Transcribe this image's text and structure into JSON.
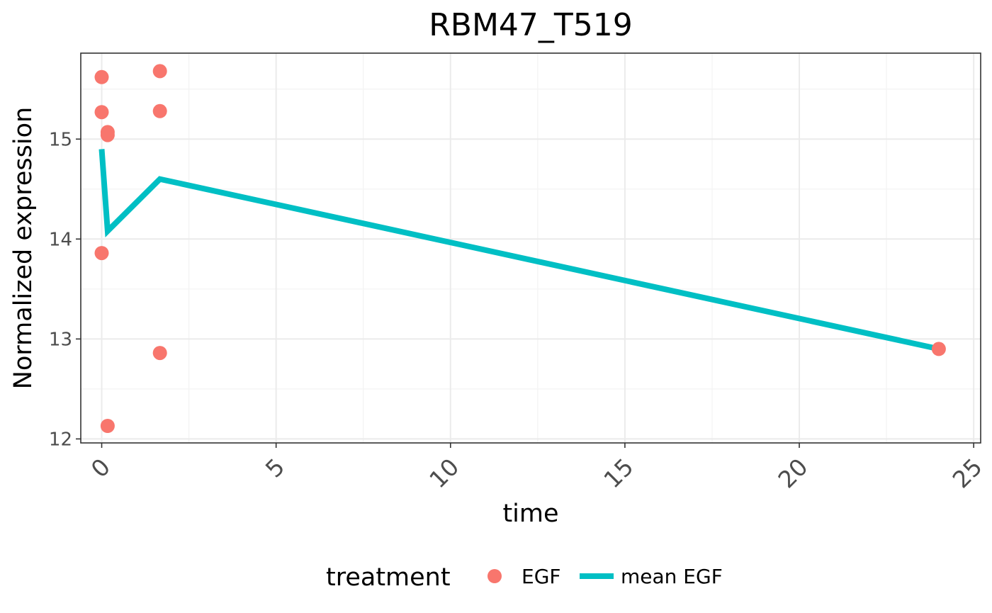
{
  "chart_data": {
    "type": "line",
    "title": "RBM47_T519",
    "xlabel": "time",
    "ylabel": "Normalized expression",
    "xlim": [
      -0.6,
      25.2
    ],
    "ylim": [
      11.96,
      15.86
    ],
    "x_ticks": [
      0,
      5,
      10,
      15,
      20,
      25
    ],
    "x_tick_labels": [
      "0",
      "5",
      "10",
      "15",
      "20",
      "25"
    ],
    "y_ticks": [
      12,
      13,
      14,
      15
    ],
    "y_tick_labels": [
      "12",
      "13",
      "14",
      "15"
    ],
    "grid": true,
    "legend_position": "bottom",
    "legend_title": "treatment",
    "series": [
      {
        "name": "EGF",
        "kind": "scatter",
        "color": "#F8766D",
        "points": [
          {
            "x": 0,
            "y": 15.62
          },
          {
            "x": 0,
            "y": 15.27
          },
          {
            "x": 0,
            "y": 13.86
          },
          {
            "x": 0.17,
            "y": 15.07
          },
          {
            "x": 0.17,
            "y": 15.04
          },
          {
            "x": 0.17,
            "y": 12.13
          },
          {
            "x": 1.67,
            "y": 15.68
          },
          {
            "x": 1.67,
            "y": 15.28
          },
          {
            "x": 1.67,
            "y": 12.86
          },
          {
            "x": 24,
            "y": 12.9
          }
        ]
      },
      {
        "name": "mean EGF",
        "kind": "line",
        "color": "#00BFC4",
        "points": [
          {
            "x": 0,
            "y": 14.9
          },
          {
            "x": 0.17,
            "y": 14.08
          },
          {
            "x": 1.67,
            "y": 14.6
          },
          {
            "x": 24,
            "y": 12.9
          }
        ]
      }
    ]
  }
}
